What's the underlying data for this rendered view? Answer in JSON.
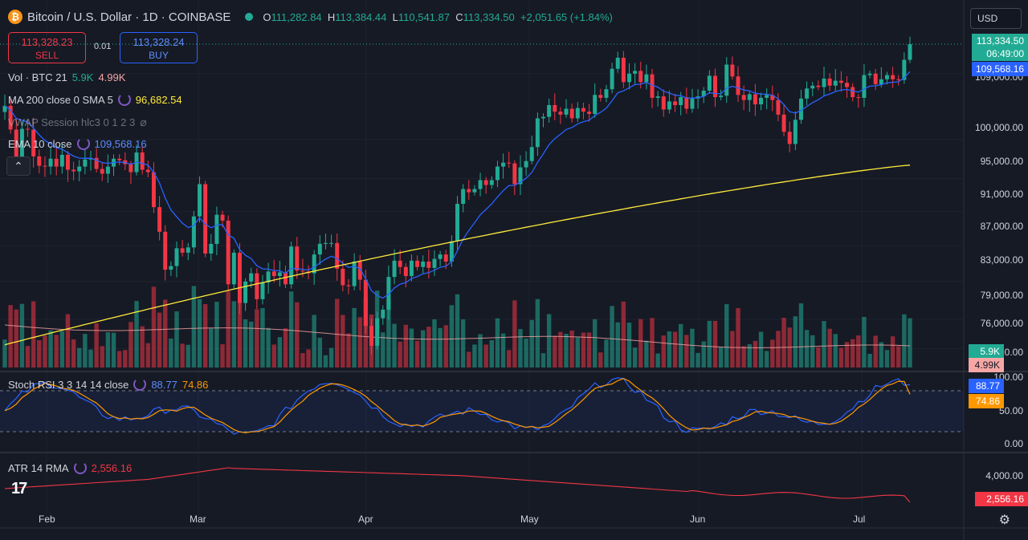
{
  "header": {
    "title": "Bitcoin / U.S. Dollar · 1D · COINBASE",
    "btc_symbol": "₿",
    "ohlc": {
      "o_label": "O",
      "o_value": "111,282.84",
      "h_label": "H",
      "h_value": "113,384.44",
      "l_label": "L",
      "l_value": "110,541.87",
      "c_label": "C",
      "c_value": "113,334.50",
      "change": "+2,051.65 (+1.84%)"
    }
  },
  "trade": {
    "sell_price": "113,328.23",
    "sell_label": "SELL",
    "spread": "0.01",
    "buy_price": "113,328.24",
    "buy_label": "BUY"
  },
  "indicators": {
    "vol": {
      "label": "Vol · BTC 21",
      "v1": "5.9K",
      "v2": "4.99K"
    },
    "ma200": {
      "label": "MA 200 close 0 SMA 5",
      "value": "96,682.54"
    },
    "vwap": {
      "label": "VWAP Session hlc3 0 1 2 3"
    },
    "ema10": {
      "label": "EMA 10 close",
      "value": "109,568.16"
    },
    "stoch": {
      "label": "Stoch RSI 3 3 14 14 close",
      "k": "88.77",
      "d": "74.86"
    },
    "atr": {
      "label": "ATR 14 RMA",
      "value": "2,556.16"
    }
  },
  "currency": "USD",
  "price_axis": [
    "100,000.00",
    "95,000.00",
    "91,000.00",
    "87,000.00",
    "83,000.00",
    "79,000.00",
    "76,000.00"
  ],
  "price_axis_hidden": "109,000.00",
  "vol_axis_tail": "0.00",
  "stoch_axis": [
    "100.00",
    "50.00",
    "0.00"
  ],
  "atr_axis": [
    "4,000.00"
  ],
  "badges": {
    "last_price": "113,334.50",
    "countdown": "06:49:00",
    "ema": "109,568.16",
    "vol_up": "5.9K",
    "vol_down": "4.99K",
    "stoch_k": "88.77",
    "stoch_d": "74.86",
    "atr": "2,556.16"
  },
  "dates": [
    "Feb",
    "Mar",
    "Apr",
    "May",
    "Jun",
    "Jul"
  ],
  "colors": {
    "bg": "#161a25",
    "up": "#22ab94",
    "down": "#f23645",
    "ema": "#2962ff",
    "ma200": "#ffeb3b",
    "stoch_k": "#2962ff",
    "stoch_d": "#ff9800",
    "atr": "#f23645",
    "volume_ma": "#f7a6a6"
  },
  "icons": {
    "collapse": "chevron-up-icon",
    "settings": "gear-icon",
    "logo": "tradingview-logo"
  },
  "logo_text": "17",
  "gear_glyph": "⚙",
  "collapse_glyph": "⌃",
  "chart_data": {
    "type": "candlestick",
    "symbol": "BTCUSD",
    "interval": "1D",
    "x_ticks": [
      "Feb",
      "Mar",
      "Apr",
      "May",
      "Jun",
      "Jul"
    ],
    "price_range": [
      74000,
      114500
    ],
    "closes_approx": [
      104500,
      101300,
      97700,
      101400,
      101300,
      97800,
      96600,
      96500,
      97500,
      96500,
      98000,
      96100,
      95900,
      96500,
      97400,
      97600,
      96200,
      95600,
      96500,
      97500,
      97300,
      96800,
      95800,
      98300,
      96100,
      95800,
      91500,
      88600,
      84300,
      84700,
      86700,
      86200,
      86800,
      90400,
      94300,
      86100,
      87200,
      90600,
      89900,
      82700,
      86200,
      80700,
      83000,
      83900,
      81100,
      82900,
      84100,
      83600,
      84000,
      82700,
      86900,
      84200,
      84100,
      83900,
      86000,
      87200,
      87300,
      87300,
      84400,
      82600,
      82500,
      85200,
      83200,
      78300,
      76300,
      79100,
      80000,
      83500,
      85300,
      84600,
      83600,
      85300,
      84600,
      85200,
      84500,
      85500,
      86000,
      85200,
      87500,
      91900,
      93700,
      93300,
      93700,
      94800,
      94200,
      94800,
      96500,
      97000,
      96900,
      94300,
      96400,
      97200,
      99000,
      102800,
      103000,
      104600,
      103700,
      103300,
      104100,
      102800,
      104200,
      103700,
      103400,
      106000,
      105600,
      106800,
      109700,
      111300,
      107800,
      109000,
      109400,
      107800,
      108900,
      105600,
      105800,
      104000,
      105100,
      104600,
      105700,
      104100,
      105500,
      105800,
      106600,
      108700,
      105700,
      105900,
      110300,
      108600,
      106000,
      105300,
      106100,
      104700,
      105600,
      106000,
      105300,
      103300,
      101000,
      99400,
      102600,
      105500,
      106900,
      107300,
      107100,
      108300,
      107300,
      108000,
      107700,
      107100,
      105700,
      105600,
      108800,
      109000,
      107500,
      108200,
      108800,
      108200,
      108100,
      111000,
      113300
    ],
    "ema10_last": 109568.16,
    "ma200_last": 96682.54,
    "stoch_rsi": {
      "k_last": 88.77,
      "d_last": 74.86,
      "range": [
        0,
        100
      ]
    },
    "atr_last": 2556.16,
    "volume_last": {
      "up": "5.9K",
      "down": "4.99K"
    }
  }
}
